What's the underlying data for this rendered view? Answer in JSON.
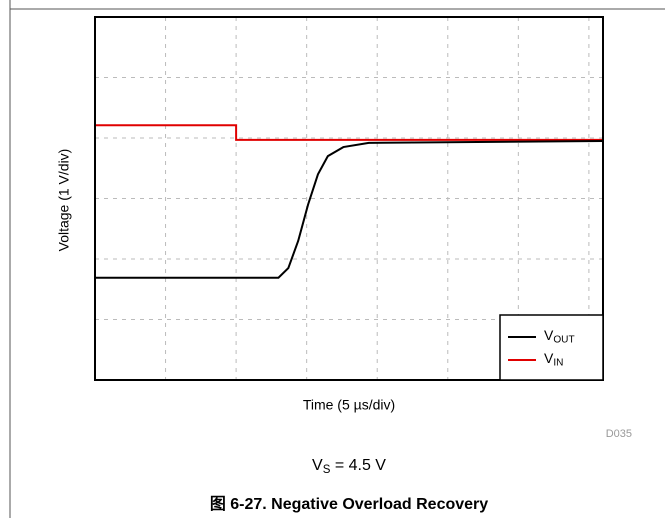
{
  "chart_data": {
    "type": "line",
    "xlabel": "Time (5 µs/div)",
    "ylabel": "Voltage (1 V/div)",
    "note": "VS = 4.5 V",
    "figure_id": "D035",
    "caption": "图 6-27. Negative Overload Recovery",
    "xlim": [
      0,
      36
    ],
    "xticks": [
      5,
      10,
      15,
      20,
      25,
      30,
      35
    ],
    "ylim": [
      0,
      6
    ],
    "yticks": [
      1,
      2,
      3,
      4,
      5
    ],
    "grid": true,
    "legend": "lower right",
    "series": [
      {
        "name": "VOUT",
        "color": "#000000",
        "x": [
          0,
          13.0,
          13.7,
          14.4,
          15.1,
          15.8,
          16.5,
          17.6,
          19.4,
          36
        ],
        "values": [
          1.69,
          1.69,
          1.85,
          2.3,
          2.9,
          3.4,
          3.7,
          3.85,
          3.92,
          3.95
        ]
      },
      {
        "name": "VIN",
        "color": "#e00000",
        "x": [
          0,
          10,
          10,
          36
        ],
        "values": [
          4.21,
          4.21,
          3.97,
          3.97
        ]
      }
    ]
  }
}
